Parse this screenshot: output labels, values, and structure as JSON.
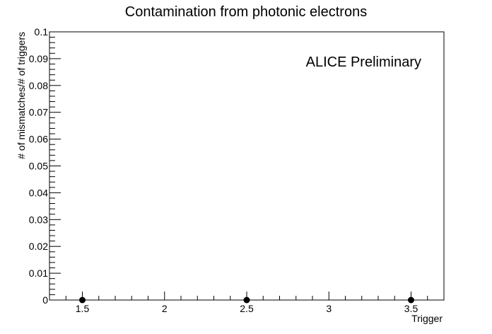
{
  "chart_data": {
    "type": "scatter",
    "title": "Contamination from photonic electrons",
    "xlabel": "Trigger",
    "ylabel": "# of mismatches/# of triggers",
    "annotation": "ALICE Preliminary",
    "xlim": [
      1.3,
      3.7
    ],
    "ylim": [
      0,
      0.1
    ],
    "x_ticks": [
      1.5,
      2,
      2.5,
      3,
      3.5
    ],
    "x_tick_labels": [
      "1.5",
      "2",
      "2.5",
      "3",
      "3.5"
    ],
    "y_ticks": [
      0,
      0.01,
      0.02,
      0.03,
      0.04,
      0.05,
      0.06,
      0.07,
      0.08,
      0.09,
      0.1
    ],
    "y_tick_labels": [
      "0",
      "0.01",
      "0.02",
      "0.03",
      "0.04",
      "0.05",
      "0.06",
      "0.07",
      "0.08",
      "0.09",
      "0.1"
    ],
    "grid": false,
    "series": [
      {
        "x": [
          1.5,
          2.5,
          3.5
        ],
        "y": [
          0,
          0,
          0
        ],
        "color": "#000000",
        "marker": "circle"
      }
    ]
  }
}
